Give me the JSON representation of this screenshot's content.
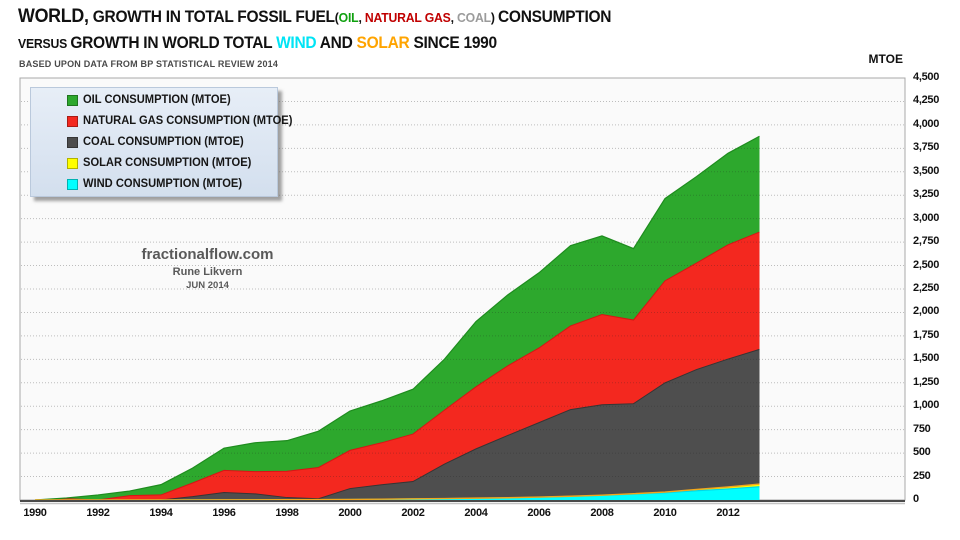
{
  "title": {
    "line1": [
      {
        "text": "WORLD,",
        "color": "#111111",
        "size": "xl"
      },
      {
        "text": " GROWTH IN TOTAL FOSSIL FUEL",
        "color": "#111111",
        "size": "lg"
      },
      {
        "text": "(",
        "color": "#111111",
        "size": "md"
      },
      {
        "text": "OIL",
        "color": "#0FA00F",
        "size": "md"
      },
      {
        "text": ", ",
        "color": "#111111",
        "size": "md"
      },
      {
        "text": "NATURAL GAS",
        "color": "#C00000",
        "size": "md"
      },
      {
        "text": ", ",
        "color": "#111111",
        "size": "md"
      },
      {
        "text": "COAL",
        "color": "#9B9B9B",
        "size": "md"
      },
      {
        "text": ") ",
        "color": "#111111",
        "size": "md"
      },
      {
        "text": "CONSUMPTION",
        "color": "#111111",
        "size": "lg"
      }
    ],
    "line2": [
      {
        "text": "VERSUS ",
        "color": "#111111",
        "size": "md"
      },
      {
        "text": "GROWTH IN WORLD TOTAL ",
        "color": "#111111",
        "size": "lg"
      },
      {
        "text": "WIND",
        "color": "#00E4F5",
        "size": "lg"
      },
      {
        "text": " AND ",
        "color": "#111111",
        "size": "lg"
      },
      {
        "text": "SOLAR",
        "color": "#FFA400",
        "size": "lg"
      },
      {
        "text": " SINCE 1990",
        "color": "#111111",
        "size": "lg"
      }
    ],
    "subtitle": "BASED UPON DATA FROM BP STATISTICAL REVIEW 2014"
  },
  "watermark": {
    "site": "fractionalflow.com",
    "author": "Rune Likvern",
    "date": "JUN 2014"
  },
  "axis": {
    "unit_label": "MTOE",
    "x_ticks": [
      {
        "year": 1990,
        "label": "1990"
      },
      {
        "year": 1992,
        "label": "1992"
      },
      {
        "year": 1994,
        "label": "1994"
      },
      {
        "year": 1996,
        "label": "1996"
      },
      {
        "year": 1998,
        "label": "1998"
      },
      {
        "year": 2000,
        "label": "2000"
      },
      {
        "year": 2002,
        "label": "2002"
      },
      {
        "year": 2004,
        "label": "2004"
      },
      {
        "year": 2006,
        "label": "2006"
      },
      {
        "year": 2008,
        "label": "2008"
      },
      {
        "year": 2010,
        "label": "2010"
      },
      {
        "year": 2012,
        "label": "2012"
      }
    ],
    "y_ticks": [
      {
        "v": 0,
        "label": "0"
      },
      {
        "v": 250,
        "label": "250"
      },
      {
        "v": 500,
        "label": "500"
      },
      {
        "v": 750,
        "label": "750"
      },
      {
        "v": 1000,
        "label": "1,000"
      },
      {
        "v": 1250,
        "label": "1,250"
      },
      {
        "v": 1500,
        "label": "1,500"
      },
      {
        "v": 1750,
        "label": "1,750"
      },
      {
        "v": 2000,
        "label": "2,000"
      },
      {
        "v": 2250,
        "label": "2,250"
      },
      {
        "v": 2500,
        "label": "2,500"
      },
      {
        "v": 2750,
        "label": "2,750"
      },
      {
        "v": 3000,
        "label": "3,000"
      },
      {
        "v": 3250,
        "label": "3,250"
      },
      {
        "v": 3500,
        "label": "3,500"
      },
      {
        "v": 3750,
        "label": "3,750"
      },
      {
        "v": 4000,
        "label": "4,000"
      },
      {
        "v": 4250,
        "label": "4,250"
      },
      {
        "v": 4500,
        "label": "4,500"
      }
    ]
  },
  "legend": {
    "items": [
      {
        "label": "OIL CONSUMPTION (MTOE)",
        "color": "#2DA82D"
      },
      {
        "label": "NATURAL GAS CONSUMPTION (MTOE)",
        "color": "#F3281F"
      },
      {
        "label": "COAL CONSUMPTION (MTOE)",
        "color": "#4D4D4D"
      },
      {
        "label": "SOLAR CONSUMPTION (MTOE)",
        "color": "#FFFF00"
      },
      {
        "label": "WIND CONSUMPTION (MTOE)",
        "color": "#00FFFF"
      }
    ]
  },
  "chart_data": {
    "type": "area",
    "stacked": true,
    "title": "WORLD, GROWTH IN TOTAL FOSSIL FUEL (OIL, NATURAL GAS, COAL) CONSUMPTION VERSUS GROWTH IN WORLD TOTAL WIND AND SOLAR SINCE 1990",
    "xlabel": "",
    "ylabel": "MTOE",
    "ylim": [
      0,
      4500
    ],
    "ytick_step": 250,
    "grid": "horizontal-dotted",
    "legend_position": "top-left",
    "x": [
      1990,
      1991,
      1992,
      1993,
      1994,
      1995,
      1996,
      1997,
      1998,
      1999,
      2000,
      2001,
      2002,
      2003,
      2004,
      2005,
      2006,
      2007,
      2008,
      2009,
      2010,
      2011,
      2012,
      2013
    ],
    "series": [
      {
        "name": "WIND CONSUMPTION (MTOE)",
        "color": "#00FFFF",
        "values": [
          0,
          0.1,
          0.3,
          0.5,
          0.8,
          1,
          1.5,
          2,
          2.6,
          3.9,
          6.2,
          8.5,
          11.6,
          14.8,
          19,
          22.8,
          29.4,
          38.3,
          48.7,
          62.5,
          76.9,
          98.7,
          117.9,
          141.3
        ]
      },
      {
        "name": "SOLAR CONSUMPTION (MTOE)",
        "color": "#FFFF00",
        "values": [
          0,
          0,
          0,
          0.1,
          0.1,
          0.1,
          0.1,
          0.2,
          0.2,
          0.3,
          0.3,
          0.4,
          0.5,
          0.6,
          0.9,
          1.1,
          1.4,
          1.8,
          2.7,
          4.7,
          7.4,
          14.3,
          20.8,
          28.2
        ]
      },
      {
        "name": "COAL CONSUMPTION (MTOE)",
        "color": "#4E4E4E",
        "values": [
          0,
          -24,
          -47,
          -32,
          -20,
          36,
          80,
          65,
          26,
          13,
          122,
          163,
          197,
          383,
          545,
          687,
          825,
          964,
          1016,
          1027,
          1249,
          1391,
          1503,
          1606
        ]
      },
      {
        "name": "NATURAL GAS CONSUMPTION (MTOE)",
        "color": "#F3281F",
        "values": [
          0,
          37,
          41,
          78,
          74,
          145,
          236,
          238,
          281,
          334,
          407,
          447,
          506,
          575,
          662,
          742,
          796,
          892,
          962,
          892,
          1088,
          1136,
          1218,
          1251
        ]
      },
      {
        "name": "OIL CONSUMPTION (MTOE)",
        "color": "#2DA82D",
        "values": [
          0,
          8,
          60,
          49,
          110,
          159,
          237,
          308,
          326,
          387,
          420,
          447,
          478,
          544,
          696,
          756,
          802,
          856,
          838,
          762,
          877,
          922,
          976,
          1022
        ]
      }
    ]
  }
}
